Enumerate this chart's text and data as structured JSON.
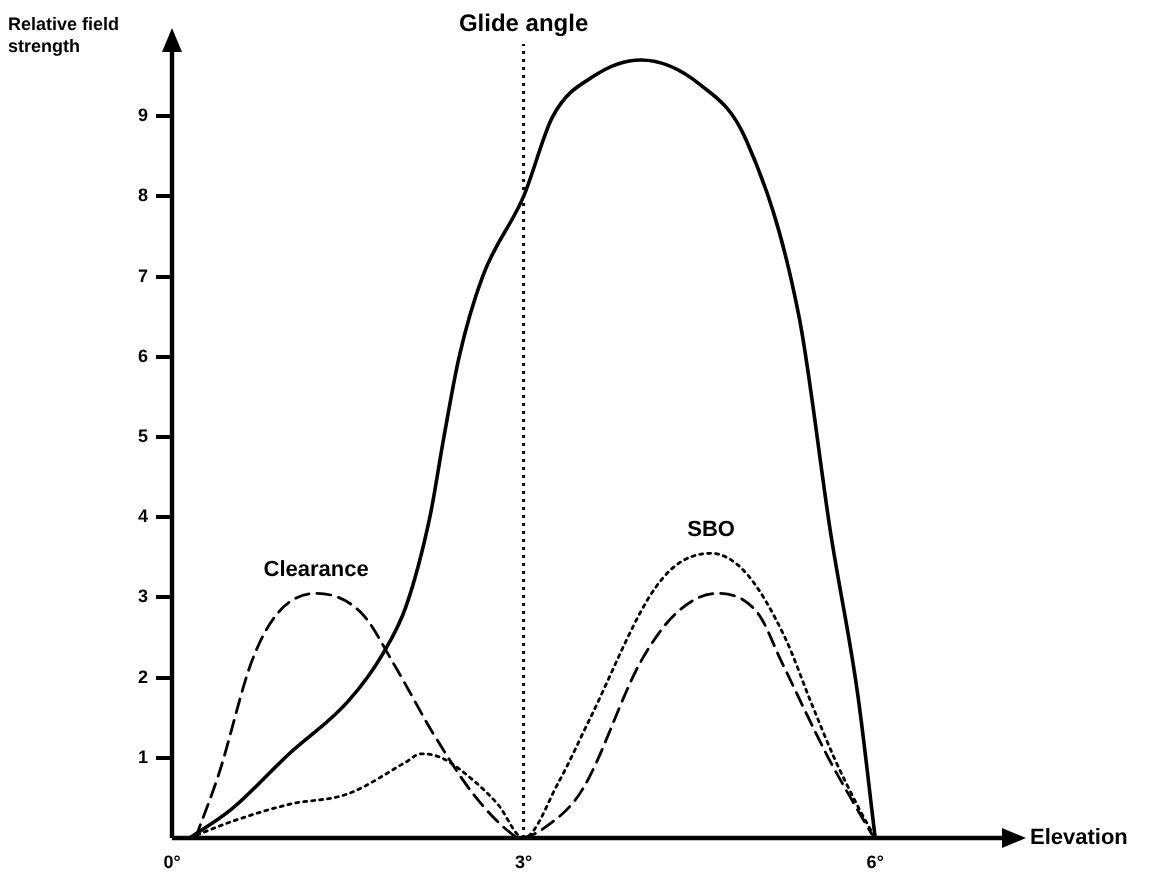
{
  "chart_data": {
    "type": "line",
    "xlabel": "Elevation",
    "ylabel": "Relative field strength",
    "xlim": [
      0,
      7.15
    ],
    "ylim": [
      0,
      9.9
    ],
    "xticks": [
      {
        "value": 0,
        "label": "0°"
      },
      {
        "value": 3,
        "label": "3°"
      },
      {
        "value": 6,
        "label": "6°"
      }
    ],
    "yticks": [
      1,
      2,
      3,
      4,
      5,
      6,
      7,
      8,
      9
    ],
    "grid": false,
    "legend": false,
    "marker": "none",
    "series": [
      {
        "color": "#000000",
        "line_style": "solid",
        "x": [
          0.15,
          0.5,
          1.0,
          1.5,
          1.8,
          2.0,
          2.2,
          2.32,
          2.45,
          2.65,
          3.0,
          3.25,
          3.6,
          4.0,
          4.5,
          4.9,
          5.35,
          5.62,
          5.85,
          6.0
        ],
        "values": [
          0,
          0.35,
          1.05,
          1.7,
          2.3,
          2.9,
          4.0,
          5.0,
          6.0,
          7.0,
          8.0,
          9.0,
          9.5,
          9.7,
          9.4,
          8.7,
          6.5,
          3.8,
          1.8,
          0
        ]
      },
      {
        "name": "Clearance",
        "color": "#000000",
        "line_style": "dashed",
        "x": [
          0.2,
          0.4,
          0.68,
          0.9,
          1.23,
          1.62,
          1.9,
          2.23,
          2.57,
          2.9,
          2.97,
          3.2,
          3.5,
          4.0,
          4.3,
          4.65,
          5.0,
          5.2,
          5.6,
          5.85,
          5.97
        ],
        "values": [
          0,
          0.8,
          2.2,
          2.8,
          3.05,
          2.8,
          2.15,
          1.3,
          0.55,
          0.05,
          0,
          0.15,
          0.6,
          2.2,
          2.8,
          3.05,
          2.8,
          2.2,
          1.0,
          0.35,
          0.05
        ]
      },
      {
        "name": "SBO",
        "color": "#000000",
        "line_style": "dotted",
        "x": [
          0.15,
          0.5,
          1.0,
          1.5,
          2.0,
          2.12,
          2.3,
          2.57,
          2.78,
          3.0,
          3.3,
          3.57,
          4.07,
          4.3,
          4.6,
          4.9,
          5.23,
          5.45,
          5.65,
          5.85,
          6.0
        ],
        "values": [
          0,
          0.2,
          0.42,
          0.55,
          0.95,
          1.05,
          1.0,
          0.72,
          0.42,
          0,
          0.7,
          1.5,
          3.0,
          3.4,
          3.55,
          3.3,
          2.5,
          1.7,
          1.0,
          0.4,
          0
        ]
      }
    ],
    "ref_lines": [
      {
        "axis": "x",
        "value": 3,
        "label": "Glide angle",
        "line_style": "dotted",
        "color": "#000000"
      }
    ]
  }
}
